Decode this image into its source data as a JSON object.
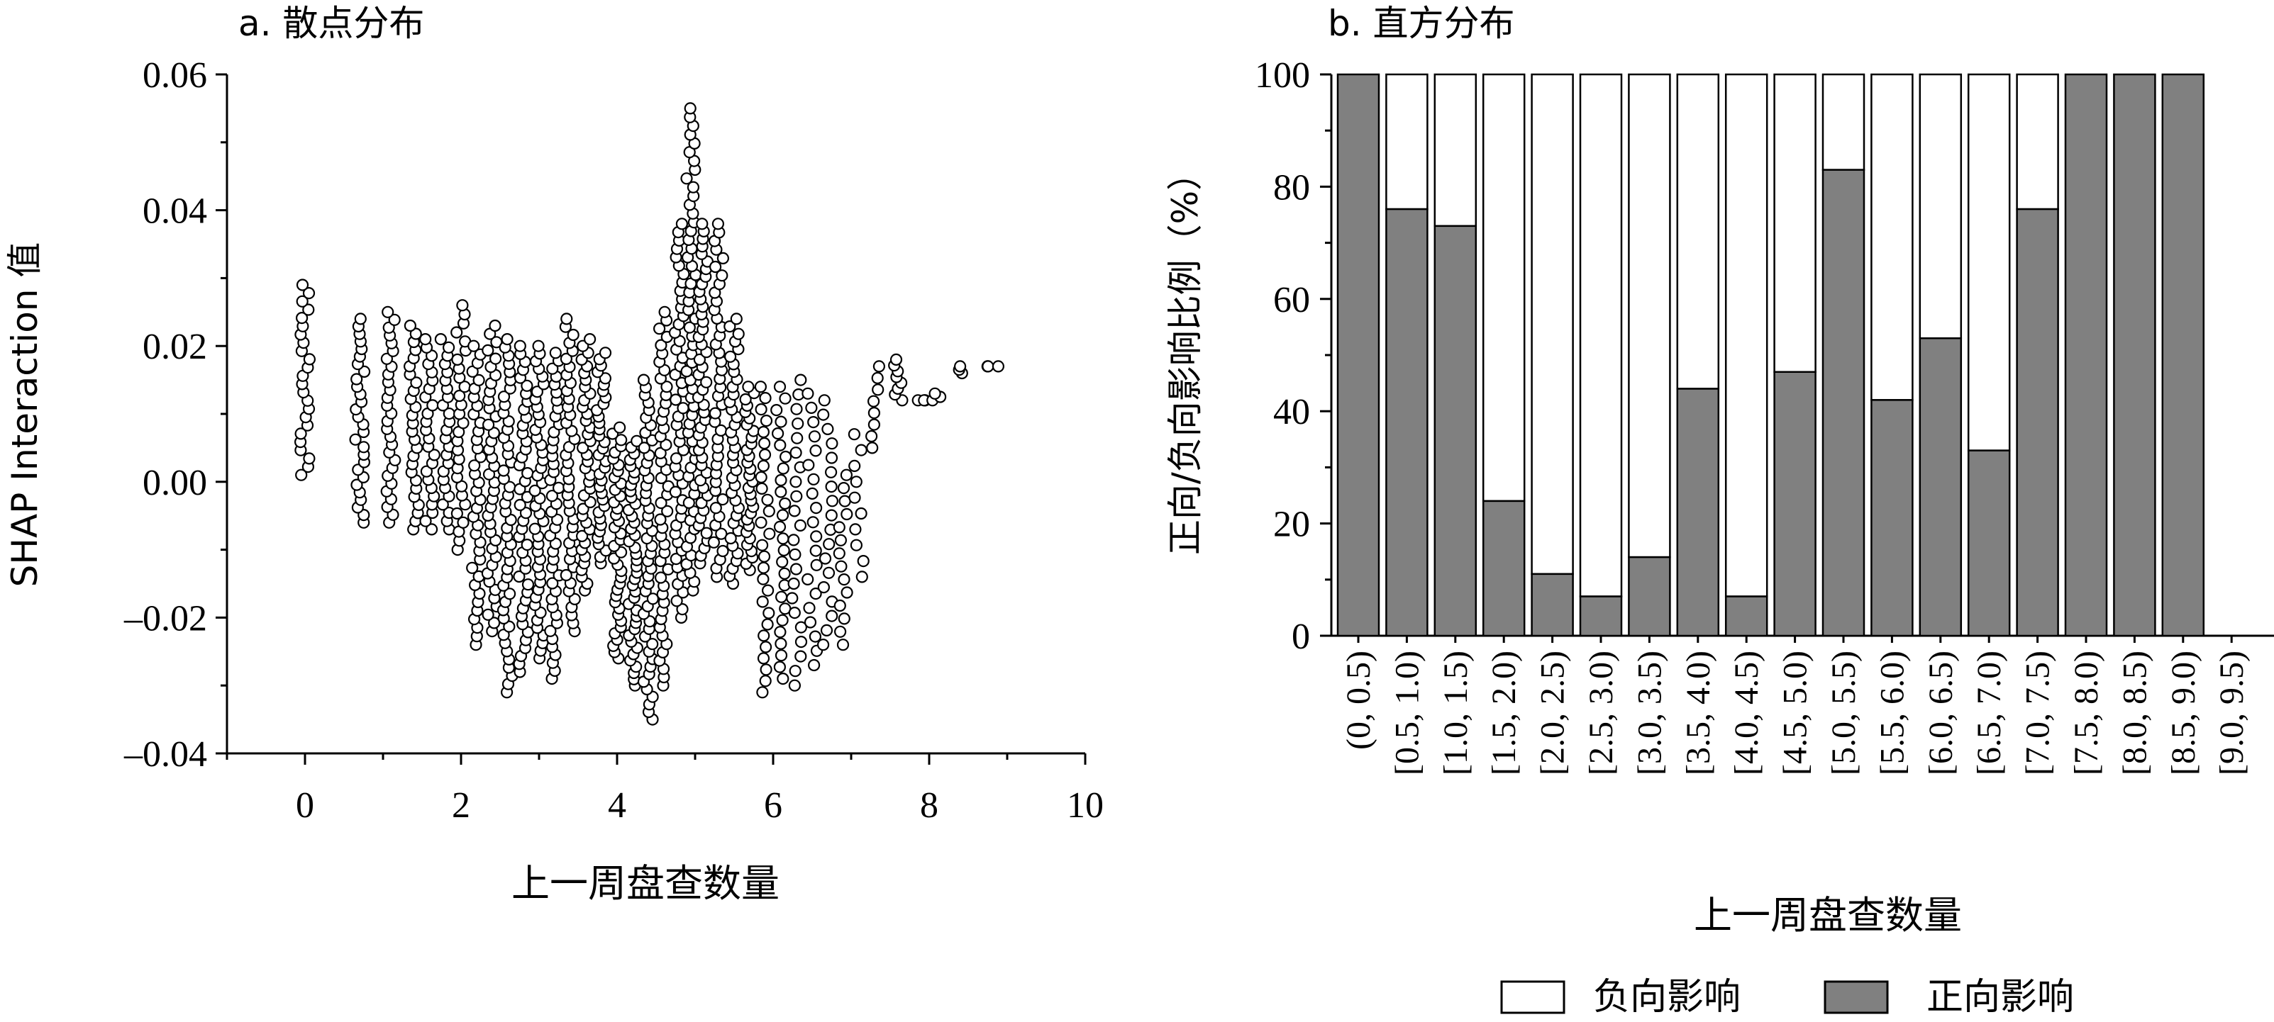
{
  "colors": {
    "positive": "#808080",
    "negative": "#ffffff",
    "axis": "#000000",
    "marker_fill": "#ffffff",
    "marker_edge": "#000000"
  },
  "chart_data": [
    {
      "type": "scatter",
      "title": "a. 散点分布",
      "xlabel": "上一周盘查数量",
      "ylabel": "SHAP Interaction 值",
      "xlim": [
        -1,
        10
      ],
      "ylim": [
        -0.04,
        0.06
      ],
      "xticks": [
        0,
        2,
        4,
        6,
        8,
        10
      ],
      "xtick_labels": [
        "0",
        "2",
        "4",
        "6",
        "8",
        "10"
      ],
      "yticks": [
        -0.04,
        -0.02,
        0.0,
        0.02,
        0.04,
        0.06
      ],
      "ytick_labels": [
        "–0.04",
        "–0.02",
        "0.00",
        "0.02",
        "0.04",
        "0.06"
      ],
      "grid": false,
      "marker": "open-circle",
      "clusters": [
        {
          "x": 0.0,
          "y_min": 0.001,
          "y_max": 0.029,
          "n": 24
        },
        {
          "x": 0.7,
          "y_min": -0.006,
          "y_max": 0.024,
          "n": 28
        },
        {
          "x": 1.1,
          "y_min": -0.006,
          "y_max": 0.025,
          "n": 28
        },
        {
          "x": 1.4,
          "y_min": -0.007,
          "y_max": 0.023,
          "n": 26
        },
        {
          "x": 1.6,
          "y_min": -0.007,
          "y_max": 0.021,
          "n": 24
        },
        {
          "x": 1.8,
          "y_min": -0.007,
          "y_max": 0.021,
          "n": 24
        },
        {
          "x": 2.0,
          "y_min": -0.01,
          "y_max": 0.026,
          "n": 28
        },
        {
          "x": 2.2,
          "y_min": -0.024,
          "y_max": 0.02,
          "n": 36
        },
        {
          "x": 2.4,
          "y_min": -0.022,
          "y_max": 0.023,
          "n": 38
        },
        {
          "x": 2.6,
          "y_min": -0.031,
          "y_max": 0.021,
          "n": 44
        },
        {
          "x": 2.8,
          "y_min": -0.028,
          "y_max": 0.02,
          "n": 42
        },
        {
          "x": 3.0,
          "y_min": -0.026,
          "y_max": 0.02,
          "n": 42
        },
        {
          "x": 3.2,
          "y_min": -0.029,
          "y_max": 0.019,
          "n": 42
        },
        {
          "x": 3.4,
          "y_min": -0.022,
          "y_max": 0.024,
          "n": 40
        },
        {
          "x": 3.6,
          "y_min": -0.016,
          "y_max": 0.021,
          "n": 38
        },
        {
          "x": 3.8,
          "y_min": -0.012,
          "y_max": 0.019,
          "n": 34
        },
        {
          "x": 4.0,
          "y_min": -0.026,
          "y_max": 0.008,
          "n": 38
        },
        {
          "x": 4.2,
          "y_min": -0.03,
          "y_max": 0.006,
          "n": 40
        },
        {
          "x": 4.4,
          "y_min": -0.035,
          "y_max": 0.015,
          "n": 46
        },
        {
          "x": 4.6,
          "y_min": -0.03,
          "y_max": 0.025,
          "n": 46
        },
        {
          "x": 4.8,
          "y_min": -0.02,
          "y_max": 0.038,
          "n": 48
        },
        {
          "x": 4.95,
          "y_min": -0.016,
          "y_max": 0.055,
          "n": 56
        },
        {
          "x": 5.1,
          "y_min": -0.012,
          "y_max": 0.038,
          "n": 46
        },
        {
          "x": 5.3,
          "y_min": -0.014,
          "y_max": 0.038,
          "n": 42
        },
        {
          "x": 5.5,
          "y_min": -0.015,
          "y_max": 0.024,
          "n": 36
        },
        {
          "x": 5.7,
          "y_min": -0.013,
          "y_max": 0.014,
          "n": 30
        },
        {
          "x": 5.9,
          "y_min": -0.031,
          "y_max": 0.014,
          "n": 28
        },
        {
          "x": 6.1,
          "y_min": -0.029,
          "y_max": 0.014,
          "n": 26
        },
        {
          "x": 6.3,
          "y_min": -0.03,
          "y_max": 0.015,
          "n": 22
        },
        {
          "x": 6.5,
          "y_min": -0.027,
          "y_max": 0.013,
          "n": 20
        },
        {
          "x": 6.7,
          "y_min": -0.024,
          "y_max": 0.012,
          "n": 18
        },
        {
          "x": 6.9,
          "y_min": -0.024,
          "y_max": 0.001,
          "n": 14
        },
        {
          "x": 7.1,
          "y_min": -0.014,
          "y_max": 0.007,
          "n": 10
        },
        {
          "x": 7.3,
          "y_min": 0.005,
          "y_max": 0.017,
          "n": 8
        },
        {
          "x": 7.6,
          "y_min": 0.012,
          "y_max": 0.018,
          "n": 8
        },
        {
          "x": 7.9,
          "y_min": 0.012,
          "y_max": 0.012,
          "n": 4
        },
        {
          "x": 8.1,
          "y_min": 0.012,
          "y_max": 0.013,
          "n": 3
        },
        {
          "x": 8.4,
          "y_min": 0.016,
          "y_max": 0.017,
          "n": 3
        },
        {
          "x": 8.7,
          "y_min": 0.017,
          "y_max": 0.017,
          "n": 2
        },
        {
          "x": 8.9,
          "y_min": 0.017,
          "y_max": 0.017,
          "n": 1
        }
      ]
    },
    {
      "type": "bar",
      "stacked": true,
      "title": "b. 直方分布",
      "xlabel": "上一周盘查数量",
      "ylabel": "正向/负向影响比例（%）",
      "ylim": [
        0,
        100
      ],
      "yticks": [
        0,
        20,
        40,
        60,
        80,
        100
      ],
      "ytick_labels": [
        "0",
        "20",
        "40",
        "60",
        "80",
        "100"
      ],
      "grid": false,
      "legend_position": "bottom-center",
      "categories": [
        "(0, 0.5)",
        "[0.5, 1.0)",
        "[1.0, 1.5)",
        "[1.5, 2.0)",
        "[2.0, 2.5)",
        "[2.5, 3.0)",
        "[3.0, 3.5)",
        "[3.5, 4.0)",
        "[4.0, 4.5)",
        "[4.5, 5.0)",
        "[5.0, 5.5)",
        "[5.5, 6.0)",
        "[6.0, 6.5)",
        "[6.5, 7.0)",
        "[7.0, 7.5)",
        "[7.5, 8.0)",
        "[8.0, 8.5)",
        "[8.5, 9.0)",
        "[9.0, 9.5)"
      ],
      "series": [
        {
          "name": "正向影响",
          "color": "#808080",
          "values": [
            100,
            76,
            73,
            24,
            11,
            7,
            14,
            44,
            7,
            47,
            83,
            42,
            53,
            33,
            76,
            100,
            100,
            100,
            0
          ]
        },
        {
          "name": "负向影响",
          "color": "#ffffff",
          "values": [
            0,
            24,
            27,
            76,
            89,
            93,
            86,
            56,
            93,
            53,
            17,
            58,
            47,
            67,
            24,
            0,
            0,
            0,
            0
          ]
        }
      ],
      "legend": [
        "负向影响",
        "正向影响"
      ]
    }
  ]
}
